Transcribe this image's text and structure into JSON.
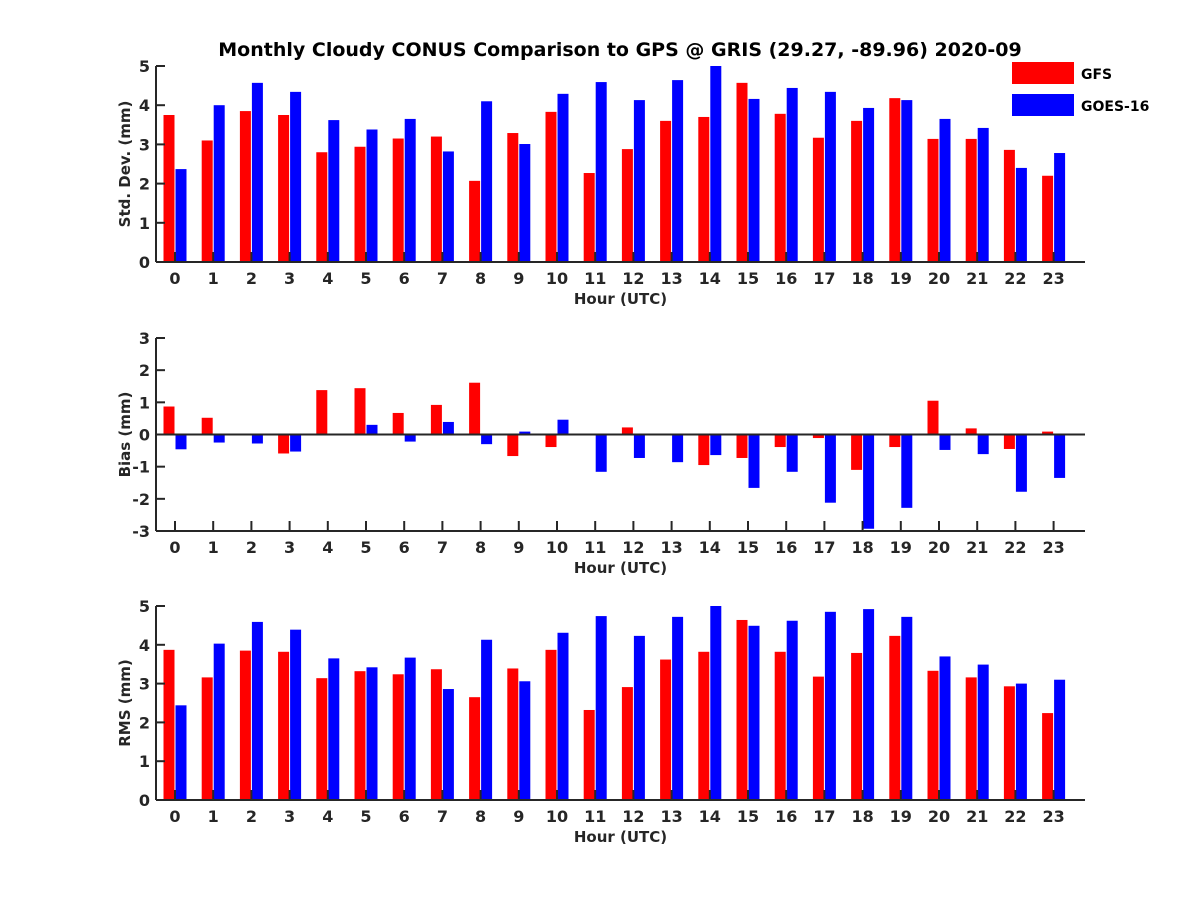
{
  "chart_data": {
    "title": "Monthly Cloudy CONUS Comparison to GPS @ GRIS (29.27, -89.96) 2020-09",
    "legend": {
      "placement": "top-right",
      "entries": [
        {
          "name": "GFS",
          "color": "#ff0000"
        },
        {
          "name": "GOES-16",
          "color": "#0000ff"
        }
      ]
    },
    "panels": [
      {
        "type": "bar",
        "id": "std",
        "xlabel": "Hour (UTC)",
        "ylabel": "Std. Dev. (mm)",
        "ylim": [
          0,
          5
        ],
        "yticks": [
          0,
          1,
          2,
          3,
          4,
          5
        ],
        "categories": [
          "0",
          "1",
          "2",
          "3",
          "4",
          "5",
          "6",
          "7",
          "8",
          "9",
          "10",
          "11",
          "12",
          "13",
          "14",
          "15",
          "16",
          "17",
          "18",
          "19",
          "20",
          "21",
          "22",
          "23"
        ],
        "series": [
          {
            "name": "GFS",
            "color": "#ff0000",
            "values": [
              3.75,
              3.1,
              3.85,
              3.75,
              2.8,
              2.94,
              3.15,
              3.2,
              2.07,
              3.29,
              3.83,
              2.27,
              2.88,
              3.6,
              3.7,
              4.57,
              3.78,
              3.17,
              3.6,
              4.18,
              3.14,
              3.14,
              2.86,
              2.2
            ]
          },
          {
            "name": "GOES-16",
            "color": "#0000ff",
            "values": [
              2.37,
              4.0,
              4.57,
              4.34,
              3.62,
              3.38,
              3.65,
              2.82,
              4.1,
              3.01,
              4.29,
              4.59,
              4.13,
              4.64,
              5.0,
              4.16,
              4.44,
              4.34,
              3.93,
              4.13,
              3.65,
              3.42,
              2.4,
              2.78
            ]
          }
        ]
      },
      {
        "type": "bar",
        "id": "bias",
        "xlabel": "Hour (UTC)",
        "ylabel": "Bias (mm)",
        "ylim": [
          -3,
          3
        ],
        "yticks": [
          -3,
          -2,
          -1,
          0,
          1,
          2,
          3
        ],
        "zero_line": true,
        "categories": [
          "0",
          "1",
          "2",
          "3",
          "4",
          "5",
          "6",
          "7",
          "8",
          "9",
          "10",
          "11",
          "12",
          "13",
          "14",
          "15",
          "16",
          "17",
          "18",
          "19",
          "20",
          "21",
          "22",
          "23"
        ],
        "series": [
          {
            "name": "GFS",
            "color": "#ff0000",
            "values": [
              0.87,
              0.52,
              0.0,
              -0.59,
              1.38,
              1.44,
              0.67,
              0.92,
              1.61,
              -0.67,
              -0.39,
              0.0,
              0.22,
              -0.03,
              -0.95,
              -0.73,
              -0.39,
              -0.11,
              -1.1,
              -0.39,
              1.05,
              0.19,
              -0.45,
              0.09
            ]
          },
          {
            "name": "GOES-16",
            "color": "#0000ff",
            "values": [
              -0.46,
              -0.25,
              -0.28,
              -0.53,
              0.03,
              0.3,
              -0.22,
              0.39,
              -0.3,
              0.09,
              0.46,
              -1.16,
              -0.73,
              -0.86,
              -0.64,
              -1.66,
              -1.16,
              -2.12,
              -2.93,
              -2.28,
              -0.48,
              -0.61,
              -1.78,
              -1.35
            ]
          }
        ]
      },
      {
        "type": "bar",
        "id": "rms",
        "xlabel": "Hour (UTC)",
        "ylabel": "RMS (mm)",
        "ylim": [
          0,
          5
        ],
        "yticks": [
          0,
          1,
          2,
          3,
          4,
          5
        ],
        "categories": [
          "0",
          "1",
          "2",
          "3",
          "4",
          "5",
          "6",
          "7",
          "8",
          "9",
          "10",
          "11",
          "12",
          "13",
          "14",
          "15",
          "16",
          "17",
          "18",
          "19",
          "20",
          "21",
          "22",
          "23"
        ],
        "series": [
          {
            "name": "GFS",
            "color": "#ff0000",
            "values": [
              3.87,
              3.16,
              3.85,
              3.82,
              3.14,
              3.32,
              3.24,
              3.37,
              2.65,
              3.39,
              3.87,
              2.32,
              2.91,
              3.62,
              3.82,
              4.64,
              3.82,
              3.18,
              3.79,
              4.23,
              3.33,
              3.16,
              2.93,
              2.24
            ]
          },
          {
            "name": "GOES-16",
            "color": "#0000ff",
            "values": [
              2.44,
              4.03,
              4.59,
              4.39,
              3.65,
              3.42,
              3.67,
              2.86,
              4.13,
              3.06,
              4.31,
              4.74,
              4.23,
              4.72,
              5.0,
              4.49,
              4.62,
              4.85,
              4.92,
              4.72,
              3.7,
              3.49,
              3.0,
              3.1
            ]
          }
        ]
      }
    ]
  }
}
